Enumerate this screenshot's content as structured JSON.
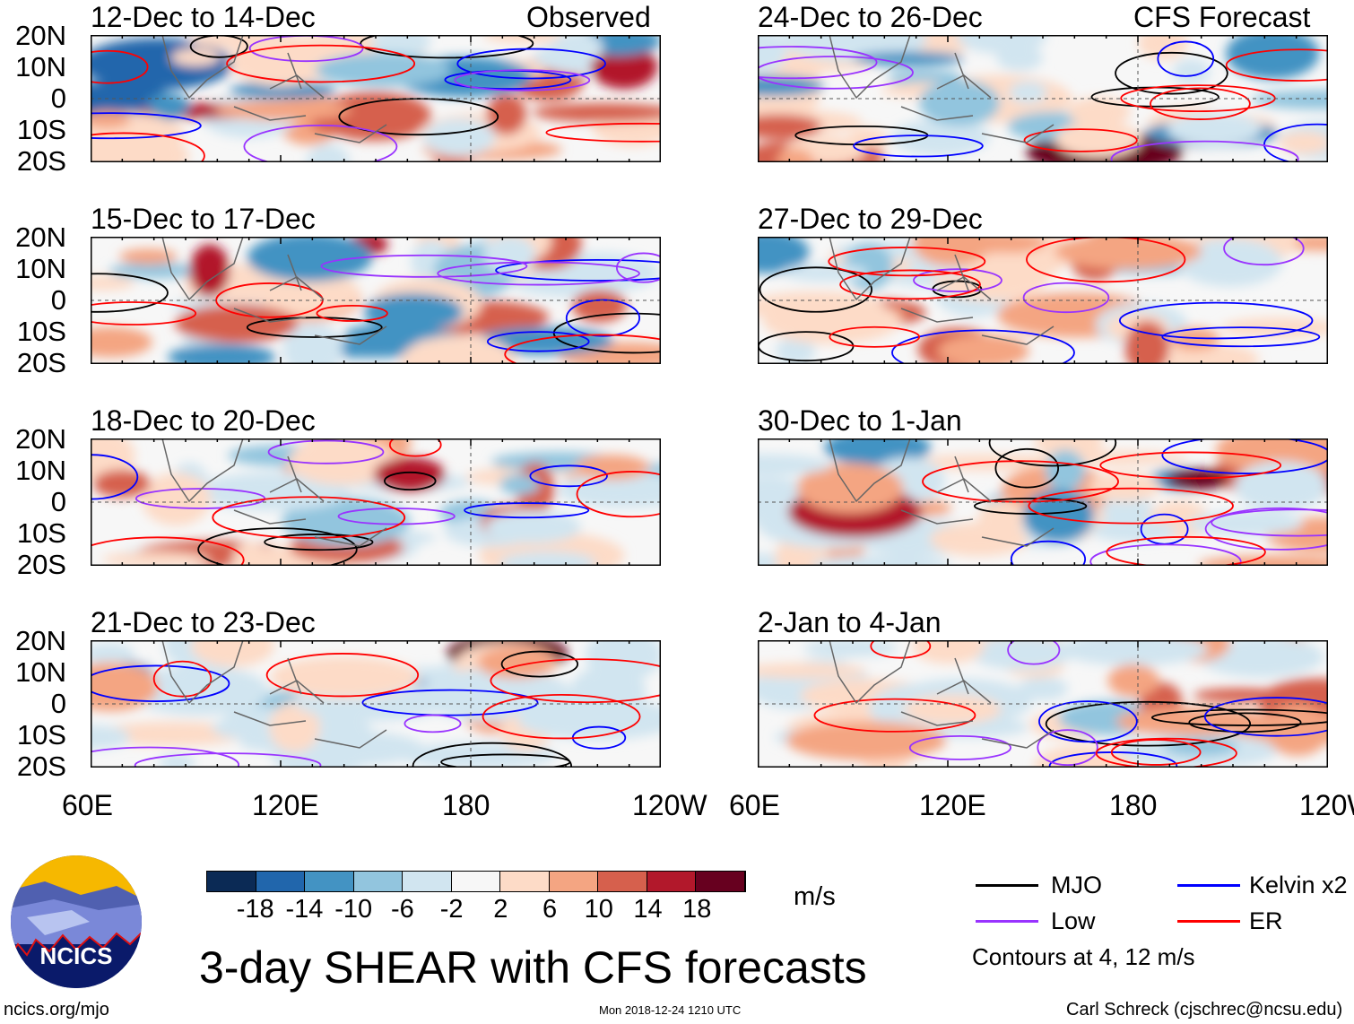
{
  "title": "3-day SHEAR with CFS forecasts",
  "observed_label": "Observed",
  "forecast_label": "CFS Forecast",
  "panels_left": [
    "12-Dec to 14-Dec",
    "15-Dec to 17-Dec",
    "18-Dec to 20-Dec",
    "21-Dec to 23-Dec"
  ],
  "panels_right": [
    "24-Dec to 26-Dec",
    "27-Dec to 29-Dec",
    "30-Dec to 1-Jan",
    "2-Jan to 4-Jan"
  ],
  "lat_labels": [
    "20N",
    "10N",
    "0",
    "10S",
    "20S"
  ],
  "lon_labels": [
    "60E",
    "120E",
    "180",
    "120W"
  ],
  "colorbar": {
    "unit": "m/s",
    "labels": [
      "-18",
      "-14",
      "-10",
      "-6",
      "-2",
      "2",
      "6",
      "10",
      "14",
      "18"
    ],
    "colors": [
      "#0b2a55",
      "#2166ac",
      "#4393c3",
      "#92c5de",
      "#d1e5f0",
      "#f7f7f7",
      "#fddbc7",
      "#f4a582",
      "#d6604d",
      "#b2182b",
      "#67001f"
    ]
  },
  "legend": {
    "mjo": "MJO",
    "kelvin": "Kelvin x2",
    "low": "Low",
    "er": "ER",
    "contours": "Contours at 4, 12 m/s",
    "colors": {
      "mjo": "#000000",
      "kelvin": "#0000ff",
      "low": "#9933ff",
      "er": "#ff0000"
    }
  },
  "logo_text": "NCICS",
  "url": "ncics.org/mjo",
  "timestamp": "Mon 2018-12-24 1210 UTC",
  "author": "Carl Schreck (cjschrec@ncsu.edu)"
}
